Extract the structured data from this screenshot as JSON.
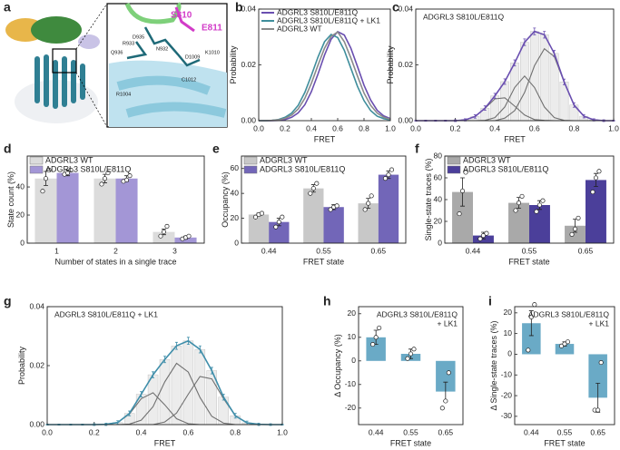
{
  "structure": {
    "panel": "a",
    "labels": [
      "S810",
      "E811",
      "D935",
      "R933",
      "N932",
      "Q936",
      "D1009",
      "K1010",
      "C1012",
      "R1004"
    ]
  },
  "chart_data": [
    {
      "type": "line",
      "panel": "b",
      "xlabel": "FRET",
      "ylabel": "Probability",
      "x": [
        0,
        0.05,
        0.1,
        0.15,
        0.2,
        0.25,
        0.3,
        0.35,
        0.4,
        0.45,
        0.5,
        0.55,
        0.6,
        0.65,
        0.7,
        0.75,
        0.8,
        0.85,
        0.9,
        0.95,
        1
      ],
      "series": [
        {
          "name": "ADGRL3 S810L/E811Q",
          "color": "#6a4fb0",
          "values": [
            0,
            0,
            0,
            0.0001,
            0.0004,
            0.0012,
            0.0028,
            0.0057,
            0.0104,
            0.0167,
            0.0235,
            0.0292,
            0.0319,
            0.0307,
            0.026,
            0.0194,
            0.0127,
            0.0074,
            0.0037,
            0.0017,
            0.0007
          ]
        },
        {
          "name": "ADGRL3 S810L/E811Q + LK1",
          "color": "#3f8e9c",
          "values": [
            0,
            0,
            0.0001,
            0.0004,
            0.0012,
            0.0027,
            0.0055,
            0.0101,
            0.0162,
            0.0228,
            0.0283,
            0.0309,
            0.0298,
            0.0252,
            0.0188,
            0.0123,
            0.0072,
            0.0036,
            0.0016,
            0.0007,
            0.0003
          ]
        },
        {
          "name": "ADGRL3 WT",
          "color": "#8a8a8a",
          "values": [
            0,
            0,
            0.0001,
            0.0003,
            0.0008,
            0.002,
            0.0042,
            0.008,
            0.0134,
            0.0199,
            0.026,
            0.0302,
            0.0318,
            0.0283,
            0.0225,
            0.016,
            0.0099,
            0.0055,
            0.0027,
            0.0012,
            0.0005
          ]
        }
      ],
      "xlim": [
        0,
        1
      ],
      "xticks": [
        {
          "value": 0,
          "label": "0.0"
        },
        0.2,
        0.4,
        0.6,
        0.8,
        {
          "value": 1,
          "label": "1.0"
        }
      ],
      "ylim": [
        0,
        0.04
      ],
      "yticks": [
        {
          "value": 0,
          "label": "0.00"
        },
        0.02,
        0.04
      ]
    },
    {
      "type": "histogram_fit",
      "panel": "c",
      "title": "ADGRL3 S810L/E811Q",
      "xlabel": "FRET",
      "ylabel": "Probability",
      "color": "#6a4fb0",
      "x": [
        0,
        0.05,
        0.1,
        0.15,
        0.2,
        0.25,
        0.3,
        0.35,
        0.4,
        0.45,
        0.5,
        0.55,
        0.6,
        0.65,
        0.7,
        0.75,
        0.8,
        0.85,
        0.9,
        0.95,
        1
      ],
      "values": [
        0,
        0,
        0,
        0,
        0,
        0.0003,
        0.0015,
        0.0045,
        0.0089,
        0.014,
        0.0207,
        0.0281,
        0.032,
        0.0308,
        0.0241,
        0.0139,
        0.0056,
        0.0016,
        0.0003,
        0,
        0
      ],
      "errors": [
        0.0002,
        0.0002,
        0.0002,
        0.0002,
        0.0003,
        0.0004,
        0.0006,
        0.0008,
        0.0009,
        0.001,
        0.0011,
        0.0012,
        0.0012,
        0.0012,
        0.0011,
        0.001,
        0.0008,
        0.0006,
        0.0004,
        0.0003,
        0.0002
      ],
      "components": [
        [
          0,
          0,
          0,
          0,
          0,
          0.0003,
          0.0015,
          0.0044,
          0.0078,
          0.0082,
          0.0052,
          0.002,
          0.0004,
          0.0001,
          0,
          0,
          0,
          0,
          0,
          0,
          0
        ],
        [
          0,
          0,
          0,
          0,
          0,
          0,
          0,
          0.0001,
          0.0011,
          0.0049,
          0.0119,
          0.016,
          0.0119,
          0.0049,
          0.0011,
          0.0001,
          0,
          0,
          0,
          0,
          0
        ],
        [
          0,
          0,
          0,
          0,
          0,
          0,
          0,
          0,
          0,
          0.0009,
          0.0036,
          0.0101,
          0.0197,
          0.0258,
          0.023,
          0.0138,
          0.0056,
          0.0016,
          0.0003,
          0,
          0
        ]
      ],
      "xlim": [
        0,
        1
      ],
      "xticks": [
        {
          "value": 0,
          "label": "0.0"
        },
        0.2,
        0.4,
        0.6,
        0.8,
        {
          "value": 1,
          "label": "1.0"
        }
      ],
      "ylim": [
        0,
        0.04
      ],
      "yticks": [
        {
          "value": 0,
          "label": "0.00"
        },
        0.02,
        0.04
      ]
    },
    {
      "type": "bar",
      "panel": "d",
      "xlabel": "Number of states in a single trace",
      "ylabel": "State count (%)",
      "categories": [
        "1",
        "2",
        "3"
      ],
      "series": [
        {
          "name": "ADGRL3 WT",
          "color": "#dcdcdc",
          "values": [
            46,
            46,
            8
          ],
          "errors": [
            5,
            3,
            2
          ],
          "points": [
            [
              37,
              46,
              52
            ],
            [
              42,
              46,
              50
            ],
            [
              5,
              8,
              12
            ]
          ]
        },
        {
          "name": "ADGRL3 S810L/E811Q",
          "color": "#a396d6",
          "values": [
            50,
            46,
            4
          ],
          "errors": [
            2,
            2,
            1
          ],
          "points": [
            [
              49,
              50,
              52
            ],
            [
              44,
              45,
              48
            ],
            [
              3,
              4,
              5
            ]
          ]
        }
      ],
      "ylim": [
        0,
        62
      ],
      "yticks": [
        0,
        20,
        40
      ]
    },
    {
      "type": "bar",
      "panel": "e",
      "xlabel": "FRET state",
      "ylabel": "Occupancy (%)",
      "categories": [
        "0.44",
        "0.55",
        "0.65"
      ],
      "series": [
        {
          "name": "ADGRL3 WT",
          "color": "#c8c8c8",
          "values": [
            23,
            44,
            32
          ],
          "errors": [
            1,
            3,
            4
          ],
          "points": [
            [
              21,
              23,
              24
            ],
            [
              40,
              44,
              48
            ],
            [
              27,
              32,
              38
            ]
          ]
        },
        {
          "name": "ADGRL3 S810L/E811Q",
          "color": "#7266b8",
          "values": [
            17,
            29,
            55
          ],
          "errors": [
            3,
            2,
            3
          ],
          "points": [
            [
              13,
              17,
              21
            ],
            [
              27,
              29,
              30
            ],
            [
              52,
              55,
              59
            ]
          ]
        }
      ],
      "ylim": [
        0,
        70
      ],
      "yticks": [
        0,
        20,
        40,
        60
      ]
    },
    {
      "type": "bar",
      "panel": "f",
      "xlabel": "FRET state",
      "ylabel": "Single-state traces (%)",
      "categories": [
        "0.44",
        "0.55",
        "0.65"
      ],
      "series": [
        {
          "name": "ADGRL3 WT",
          "color": "#a9a9a9",
          "values": [
            47,
            37,
            16
          ],
          "errors": [
            13,
            5,
            6
          ],
          "points": [
            [
              27,
              48,
              65
            ],
            [
              30,
              37,
              43
            ],
            [
              8,
              13,
              23
            ]
          ]
        },
        {
          "name": "ADGRL3 S810L/E811Q",
          "color": "#4b3f9a",
          "values": [
            7,
            35,
            58
          ],
          "errors": [
            3,
            4,
            6
          ],
          "points": [
            [
              4,
              7,
              9
            ],
            [
              29,
              35,
              39
            ],
            [
              47,
              60,
              66
            ]
          ]
        }
      ],
      "ylim": [
        0,
        80
      ],
      "yticks": [
        0,
        20,
        40,
        60,
        80
      ]
    },
    {
      "type": "histogram_fit",
      "panel": "g",
      "title": "ADGRL3 S810L/E811Q + LK1",
      "xlabel": "FRET",
      "ylabel": "Probability",
      "color": "#3f8eaa",
      "x": [
        0,
        0.05,
        0.1,
        0.15,
        0.2,
        0.25,
        0.3,
        0.35,
        0.4,
        0.45,
        0.5,
        0.55,
        0.6,
        0.65,
        0.7,
        0.75,
        0.8,
        0.85,
        0.9,
        0.95,
        1
      ],
      "values": [
        0,
        0,
        0,
        0,
        0,
        0.0001,
        0.0007,
        0.0038,
        0.0103,
        0.0169,
        0.0221,
        0.0267,
        0.0284,
        0.0255,
        0.0183,
        0.0093,
        0.003,
        0.0006,
        0.0001,
        0,
        0
      ],
      "errors": [
        0.0002,
        0.0002,
        0.0002,
        0.0002,
        0.0003,
        0.0004,
        0.0006,
        0.0008,
        0.0009,
        0.001,
        0.0011,
        0.0012,
        0.0012,
        0.0012,
        0.0011,
        0.001,
        0.0008,
        0.0006,
        0.0004,
        0.0003,
        0.0002
      ],
      "components": [
        [
          0,
          0,
          0,
          0,
          0,
          0.0001,
          0.0007,
          0.0036,
          0.0088,
          0.0108,
          0.0067,
          0.002,
          0.0003,
          0,
          0,
          0,
          0,
          0,
          0,
          0,
          0
        ],
        [
          0,
          0,
          0,
          0,
          0,
          0,
          0,
          0.0002,
          0.0015,
          0.0061,
          0.0145,
          0.0208,
          0.0178,
          0.0092,
          0.0028,
          0.0005,
          0,
          0,
          0,
          0,
          0
        ],
        [
          0,
          0,
          0,
          0,
          0,
          0,
          0,
          0,
          0,
          0,
          0.0009,
          0.0039,
          0.0103,
          0.0163,
          0.0155,
          0.0088,
          0.003,
          0.0006,
          0.0001,
          0,
          0
        ]
      ],
      "xlim": [
        0,
        1
      ],
      "xticks": [
        {
          "value": 0,
          "label": "0.0"
        },
        0.2,
        0.4,
        0.6,
        0.8,
        {
          "value": 1,
          "label": "1.0"
        }
      ],
      "ylim": [
        0,
        0.04
      ],
      "yticks": [
        {
          "value": 0,
          "label": "0.00"
        },
        0.02,
        0.04
      ]
    },
    {
      "type": "bar",
      "panel": "h",
      "title": [
        "ADGRL3 S810L/E811Q",
        "+ LK1"
      ],
      "xlabel": "FRET state",
      "ylabel": "Δ Occupancy (%)",
      "categories": [
        "0.44",
        "0.55",
        "0.65"
      ],
      "color": "#6aaac6",
      "values": [
        10,
        3,
        -13
      ],
      "errors": [
        3,
        2,
        4
      ],
      "points": [
        [
          7,
          10,
          14
        ],
        [
          1,
          3,
          5
        ],
        [
          -20,
          -17,
          -5
        ]
      ],
      "ylim": [
        -27,
        23
      ],
      "yticks": [
        -20,
        -10,
        0,
        10,
        20
      ]
    },
    {
      "type": "bar",
      "panel": "i",
      "title": [
        "ADGRL3 S810L/E811Q",
        "+ LK1"
      ],
      "xlabel": "FRET state",
      "ylabel": "Δ Single-state traces (%)",
      "categories": [
        "0.44",
        "0.55",
        "0.65"
      ],
      "color": "#6aaac6",
      "values": [
        15,
        5,
        -21
      ],
      "errors": [
        6,
        1,
        7
      ],
      "points": [
        [
          2,
          18,
          24
        ],
        [
          4,
          5,
          6
        ],
        [
          -27,
          -27,
          -4
        ]
      ],
      "ylim": [
        -34,
        23
      ],
      "yticks": [
        -30,
        -20,
        -10,
        0,
        10,
        20
      ]
    }
  ]
}
